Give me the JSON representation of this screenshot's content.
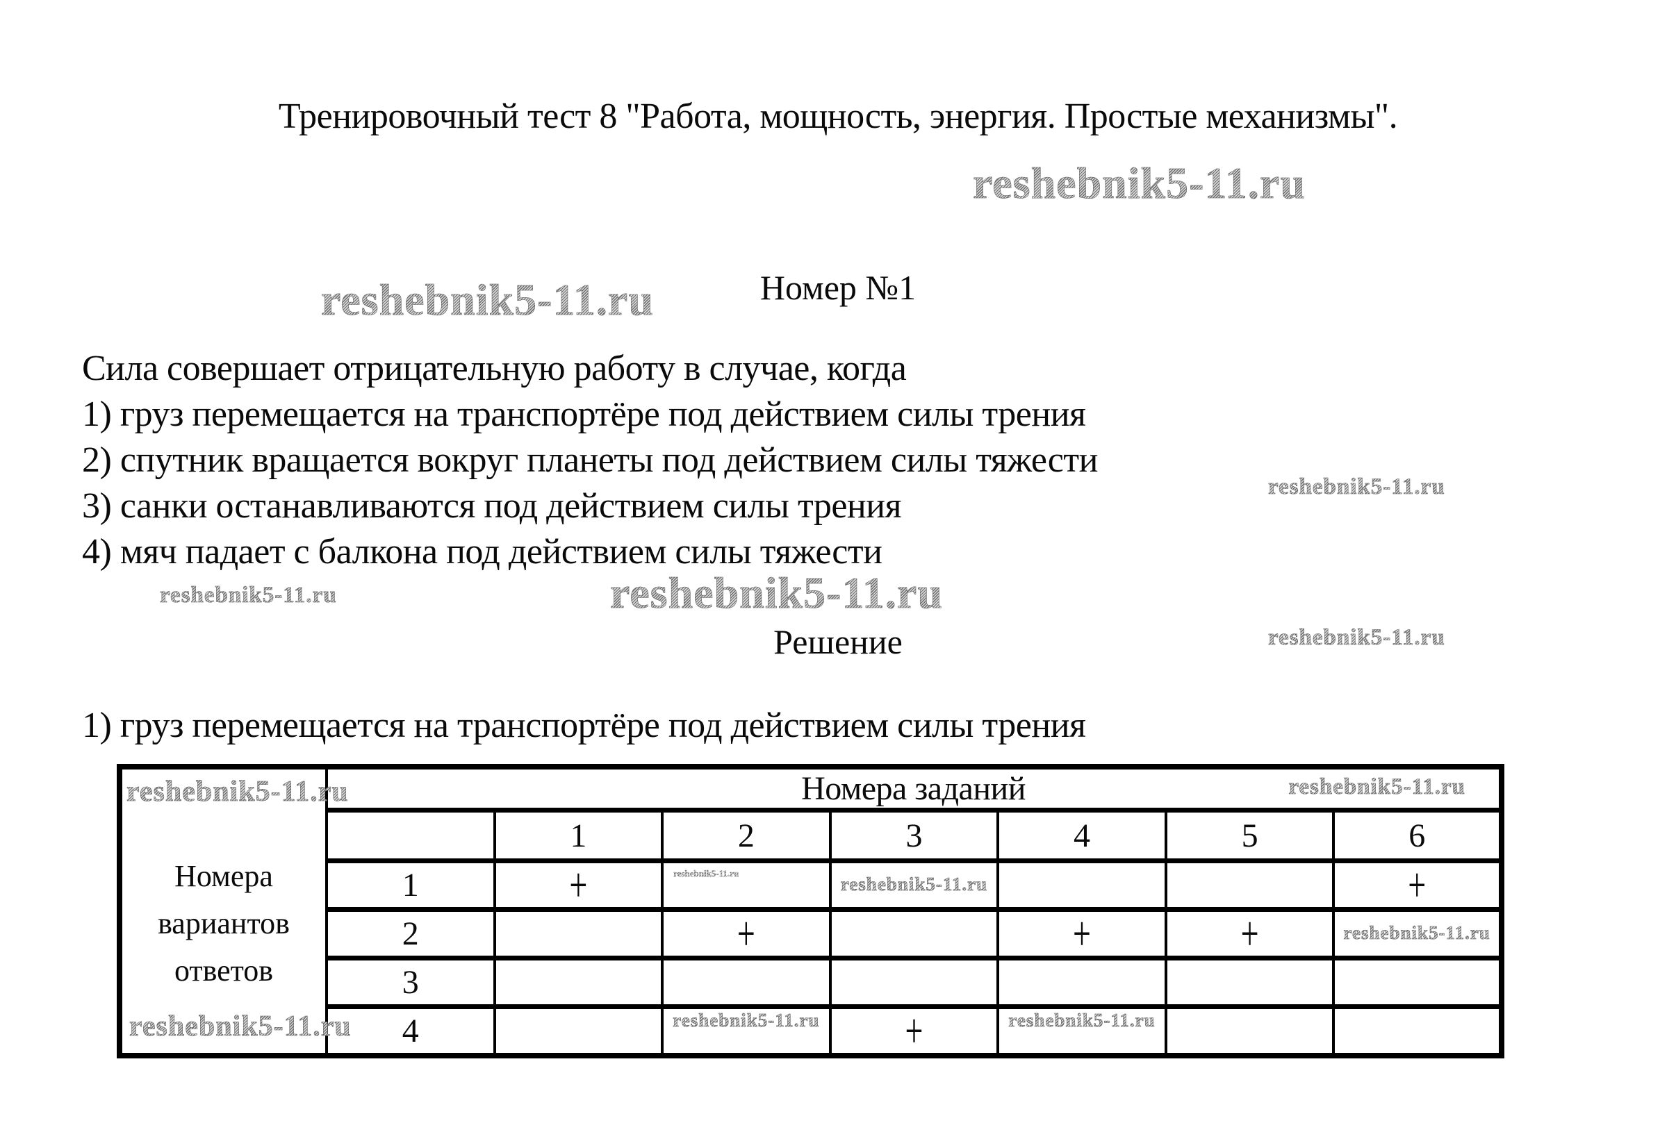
{
  "watermark_text": "reshebnik5-11.ru",
  "header": {
    "title": "Тренировочный тест 8 \"Работа, мощность, энергия. Простые механизмы\"."
  },
  "question": {
    "number_heading": "Номер №1",
    "prompt": "Сила совершает отрицательную работу в случае, когда",
    "options": [
      "1) груз перемещается на транспортёре под действием силы трения",
      "2) спутник вращается вокруг планеты под действием силы тяжести",
      "3) санки останавливаются под действием силы трения",
      "4) мяч падает с балкона под действием силы тяжести"
    ]
  },
  "solution": {
    "heading": "Решение",
    "answer_line": "1) груз перемещается на транспортёре под действием силы трения"
  },
  "answer_table": {
    "header": "Номера заданий",
    "row_label_lines": [
      "Номера",
      "вариантов",
      "ответов"
    ],
    "column_headers": [
      "1",
      "2",
      "3",
      "4",
      "5",
      "6"
    ],
    "rows": [
      {
        "label": "1",
        "marks": [
          "+",
          "",
          "",
          "",
          "",
          "+"
        ]
      },
      {
        "label": "2",
        "marks": [
          "",
          "+",
          "",
          "+",
          "+",
          ""
        ]
      },
      {
        "label": "3",
        "marks": [
          "",
          "",
          "",
          "",
          "",
          ""
        ]
      },
      {
        "label": "4",
        "marks": [
          "",
          "",
          "+",
          "",
          "",
          ""
        ]
      }
    ]
  }
}
